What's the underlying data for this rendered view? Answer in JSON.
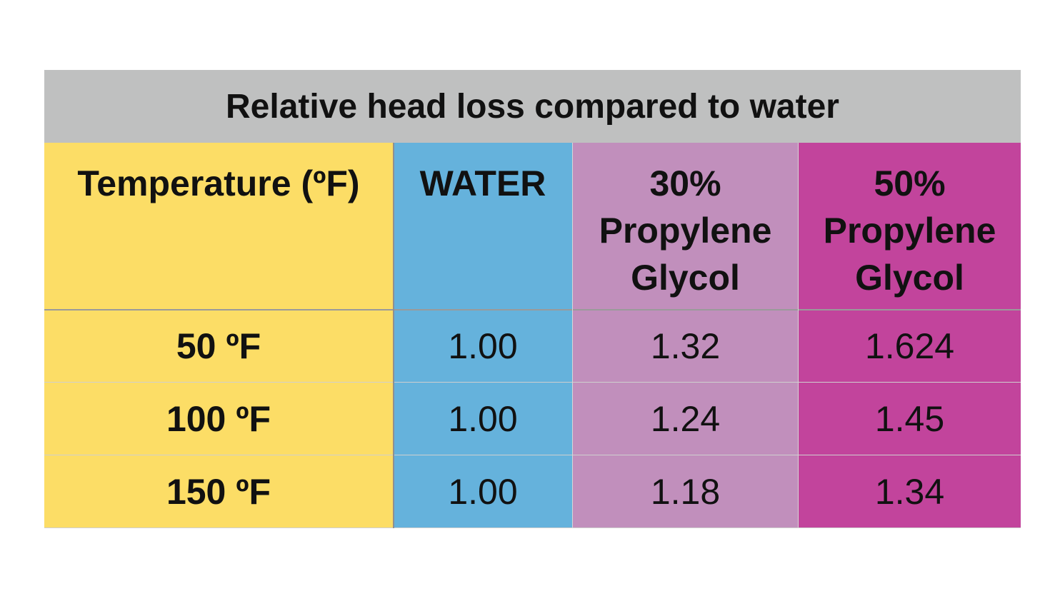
{
  "chart_data": {
    "type": "table",
    "title": "Relative head loss compared to water",
    "columns": [
      "Temperature (ºF)",
      "WATER",
      "30%\nPropylene\nGlycol",
      "50%\nPropylene\nGlycol"
    ],
    "rows": [
      [
        "50 ºF",
        "1.00",
        "1.32",
        "1.624"
      ],
      [
        "100 ºF",
        "1.00",
        "1.24",
        "1.45"
      ],
      [
        "150 ºF",
        "1.00",
        "1.18",
        "1.34"
      ]
    ]
  },
  "colors": {
    "title_bg": "#bfc0c0",
    "temperature": "#fcdd66",
    "water": "#65b2dc",
    "pg30": "#c18fbc",
    "pg50": "#c2449c"
  }
}
